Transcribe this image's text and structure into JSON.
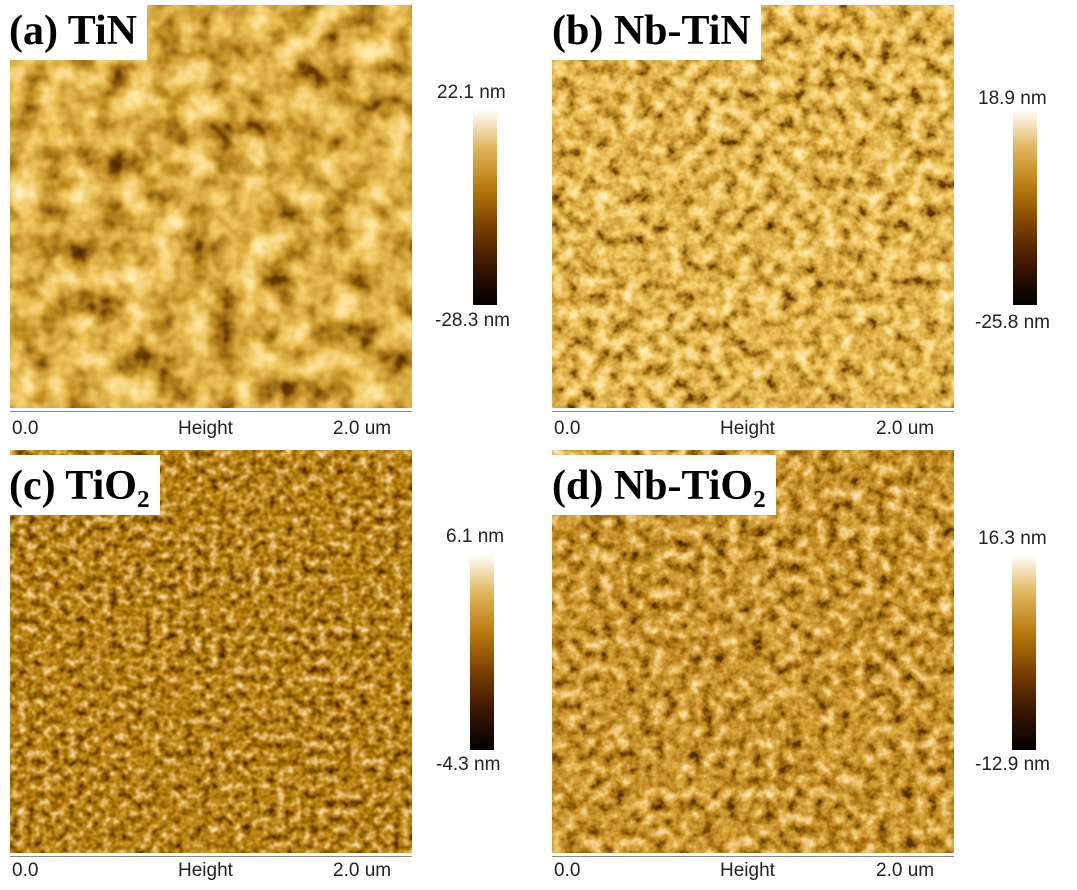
{
  "panels": [
    {
      "label": "(a) TiN",
      "scale_max": "22.1 nm",
      "scale_min": "-28.3 nm",
      "axis_start": "0.0",
      "axis_title": "Height",
      "axis_end": "2.0 um"
    },
    {
      "label": "(b) Nb-TiN",
      "scale_max": "18.9 nm",
      "scale_min": "-25.8 nm",
      "axis_start": "0.0",
      "axis_title": "Height",
      "axis_end": "2.0 um"
    },
    {
      "label": "(c) TiO₂",
      "scale_max": "6.1 nm",
      "scale_min": "-4.3 nm",
      "axis_start": "0.0",
      "axis_title": "Height",
      "axis_end": "2.0 um"
    },
    {
      "label": "(d) Nb-TiO₂",
      "scale_max": "16.3 nm",
      "scale_min": "-12.9 nm",
      "axis_start": "0.0",
      "axis_title": "Height",
      "axis_end": "2.0 um"
    }
  ]
}
